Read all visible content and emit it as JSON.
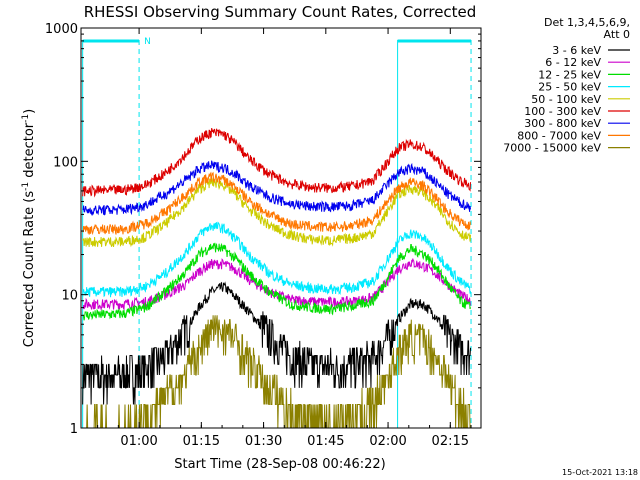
{
  "chart_data": {
    "type": "line",
    "title": "RHESSI Observing Summary Count Rates, Corrected",
    "xlabel": "Start Time (28-Sep-08 00:46:22)",
    "ylabel_main": "Corrected Count Rate (s",
    "ylabel_sup1": "-1",
    "ylabel_mid": " detector",
    "ylabel_sup2": "-1",
    "ylabel_end": ")",
    "x_start": "00:46:22",
    "xlim_minutes": [
      -0.4,
      96.0
    ],
    "ylim": [
      1,
      1000
    ],
    "yscale": "log",
    "x_ticks": [
      {
        "label": "01:00",
        "minute": 13.6
      },
      {
        "label": "01:15",
        "minute": 28.6
      },
      {
        "label": "01:30",
        "minute": 43.6
      },
      {
        "label": "01:45",
        "minute": 58.6
      },
      {
        "label": "02:00",
        "minute": 73.6
      },
      {
        "label": "02:15",
        "minute": 88.6
      }
    ],
    "y_ticks": [
      {
        "label": "1000",
        "value": 1000
      },
      {
        "label": "100",
        "value": 100
      },
      {
        "label": "10",
        "value": 10
      },
      {
        "label": "1",
        "value": 1
      }
    ],
    "legend": {
      "header1": "Det 1,3,4,5,6,9,",
      "header2": "Att 0",
      "placement": "right"
    },
    "night_intervals": [
      {
        "start_min": 0.0,
        "end_min": 13.6
      },
      {
        "start_min": 75.9,
        "end_min": 93.6
      }
    ],
    "saa_marks": [
      {
        "label": "N",
        "minute": 13.6
      },
      {
        "label": "",
        "minute": 75.9
      }
    ],
    "colors": {
      "night_band": "#00e5ee",
      "axis": "#000000"
    },
    "series": [
      {
        "name": "3 - 6 keV",
        "color": "#000000",
        "x": [
          0,
          10,
          15,
          20,
          25,
          28,
          31,
          34,
          37,
          40,
          45,
          50,
          55,
          60,
          65,
          70,
          73,
          76,
          79,
          82,
          85,
          88,
          91,
          93.6
        ],
        "y": [
          2.5,
          2.5,
          2.8,
          3.5,
          5.5,
          8.0,
          10.5,
          11.5,
          9.5,
          7.5,
          5.0,
          3.5,
          3.0,
          2.9,
          3.0,
          3.3,
          4.5,
          6.5,
          8.5,
          8.5,
          7.0,
          5.0,
          4.0,
          3.5
        ]
      },
      {
        "name": "6 - 12 keV",
        "color": "#cc00cc",
        "x": [
          0,
          10,
          15,
          20,
          25,
          28,
          31,
          34,
          37,
          40,
          45,
          50,
          55,
          60,
          65,
          70,
          73,
          76,
          79,
          82,
          85,
          88,
          91,
          93.6
        ],
        "y": [
          8.5,
          8.5,
          8.8,
          10.0,
          12.0,
          15.0,
          17.0,
          17.0,
          15.5,
          13.0,
          10.5,
          9.2,
          8.9,
          8.8,
          8.9,
          9.5,
          12.0,
          15.5,
          17.5,
          16.5,
          14.5,
          12.0,
          10.0,
          9.0
        ]
      },
      {
        "name": "12 - 25 keV",
        "color": "#00dd00",
        "x": [
          0,
          10,
          15,
          20,
          25,
          28,
          31,
          34,
          37,
          40,
          45,
          50,
          55,
          60,
          65,
          70,
          73,
          76,
          79,
          82,
          85,
          88,
          91,
          93.6
        ],
        "y": [
          7.0,
          7.2,
          8.0,
          10.5,
          15.0,
          20.0,
          23.0,
          22.0,
          18.5,
          14.5,
          10.5,
          8.5,
          8.0,
          7.8,
          8.2,
          9.0,
          12.5,
          18.5,
          22.0,
          20.5,
          16.5,
          12.0,
          9.0,
          8.0
        ]
      },
      {
        "name": "25 - 50 keV",
        "color": "#00eaff",
        "x": [
          0,
          10,
          15,
          20,
          25,
          28,
          31,
          34,
          37,
          40,
          45,
          50,
          55,
          60,
          65,
          70,
          73,
          76,
          79,
          82,
          85,
          88,
          91,
          93.6
        ],
        "y": [
          10.5,
          10.5,
          11.5,
          14.5,
          21.0,
          28.0,
          33.0,
          31.5,
          26.0,
          20.0,
          14.5,
          12.0,
          11.2,
          11.0,
          11.4,
          12.5,
          17.5,
          25.0,
          29.0,
          27.0,
          21.5,
          16.0,
          12.5,
          11.0
        ]
      },
      {
        "name": "50 - 100 keV",
        "color": "#cccc00",
        "x": [
          0,
          10,
          15,
          20,
          25,
          28,
          31,
          34,
          37,
          40,
          45,
          50,
          55,
          60,
          65,
          70,
          73,
          76,
          79,
          82,
          85,
          88,
          91,
          93.6
        ],
        "y": [
          25.0,
          25.0,
          27.0,
          34.0,
          48.0,
          62.0,
          70.0,
          67.0,
          56.0,
          44.0,
          33.0,
          28.0,
          26.0,
          25.5,
          26.5,
          29.0,
          40.0,
          56.0,
          63.0,
          59.0,
          47.0,
          36.0,
          29.0,
          26.0
        ]
      },
      {
        "name": "100 - 300 keV",
        "color": "#dd0000",
        "x": [
          0,
          10,
          15,
          20,
          25,
          28,
          31,
          34,
          37,
          40,
          45,
          50,
          55,
          60,
          65,
          70,
          73,
          76,
          79,
          82,
          85,
          88,
          91,
          93.6
        ],
        "y": [
          60.0,
          61.0,
          66.0,
          82.0,
          115.0,
          148.0,
          165.0,
          160.0,
          135.0,
          105.0,
          80.0,
          68.0,
          64.0,
          63.0,
          65.0,
          72.0,
          95.0,
          125.0,
          135.0,
          128.0,
          105.0,
          85.0,
          72.0,
          65.0
        ]
      },
      {
        "name": "300 - 800 keV",
        "color": "#0000ee",
        "x": [
          0,
          10,
          15,
          20,
          25,
          28,
          31,
          34,
          37,
          40,
          45,
          50,
          55,
          60,
          65,
          70,
          73,
          76,
          79,
          82,
          85,
          88,
          91,
          93.6
        ],
        "y": [
          43.0,
          43.5,
          47.0,
          57.0,
          73.0,
          88.0,
          93.0,
          90.0,
          80.0,
          66.0,
          54.0,
          48.0,
          46.0,
          45.5,
          46.5,
          51.0,
          65.0,
          82.0,
          88.0,
          84.0,
          70.0,
          57.0,
          49.0,
          45.0
        ]
      },
      {
        "name": "800 - 7000 keV",
        "color": "#ff7700",
        "x": [
          0,
          10,
          15,
          20,
          25,
          28,
          31,
          34,
          37,
          40,
          45,
          50,
          55,
          60,
          65,
          70,
          73,
          76,
          79,
          82,
          85,
          88,
          91,
          93.6
        ],
        "y": [
          31.0,
          31.0,
          34.0,
          42.0,
          57.0,
          70.0,
          76.0,
          73.0,
          63.0,
          51.0,
          40.0,
          34.0,
          32.5,
          32.0,
          33.0,
          36.5,
          48.0,
          63.0,
          70.0,
          66.0,
          54.0,
          42.0,
          35.5,
          32.5
        ]
      },
      {
        "name": "7000 - 15000 keV",
        "color": "#8b8000",
        "x": [
          0,
          10,
          15,
          20,
          25,
          28,
          31,
          34,
          37,
          40,
          45,
          50,
          55,
          60,
          65,
          70,
          73,
          76,
          79,
          82,
          85,
          88,
          91,
          93.6
        ],
        "y": [
          1.0,
          1.0,
          1.2,
          1.7,
          2.6,
          4.0,
          5.5,
          5.5,
          4.5,
          3.2,
          2.0,
          1.4,
          1.2,
          1.1,
          1.2,
          1.5,
          2.3,
          3.6,
          4.8,
          4.6,
          3.5,
          2.3,
          1.5,
          1.2
        ]
      }
    ]
  },
  "footer": {
    "timestamp": "15-Oct-2021 13:18"
  }
}
